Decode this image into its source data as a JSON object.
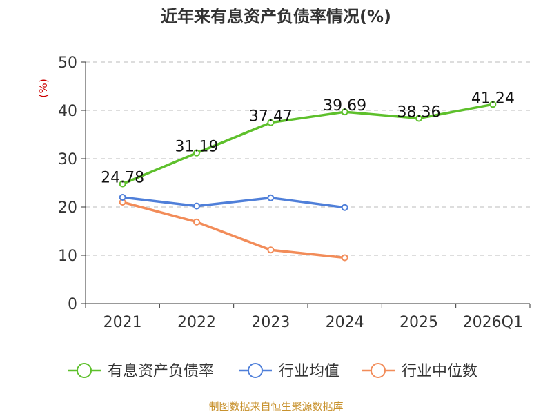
{
  "chart_data": {
    "type": "line",
    "title": "近年来有息资产负债率情况(%)",
    "ylabel": "(%)",
    "xlabel": "",
    "ylim": [
      0,
      50
    ],
    "yticks": [
      0,
      10,
      20,
      30,
      40,
      50
    ],
    "grid": true,
    "legend_position": "bottom",
    "categories": [
      "2021",
      "2022",
      "2023",
      "2024",
      "2025",
      "2026Q1"
    ],
    "series": [
      {
        "name": "有息资产负债率",
        "color": "#5ec02c",
        "values": [
          24.78,
          31.19,
          37.47,
          39.69,
          38.36,
          41.24
        ],
        "show_labels": true
      },
      {
        "name": "行业均值",
        "color": "#4f7fd9",
        "values": [
          22.0,
          20.2,
          21.9,
          19.9,
          null,
          null
        ],
        "show_labels": false
      },
      {
        "name": "行业中位数",
        "color": "#f28c59",
        "values": [
          21.0,
          16.9,
          11.1,
          9.5,
          null,
          null
        ],
        "show_labels": false
      }
    ]
  },
  "source": "制图数据来自恒生聚源数据库"
}
